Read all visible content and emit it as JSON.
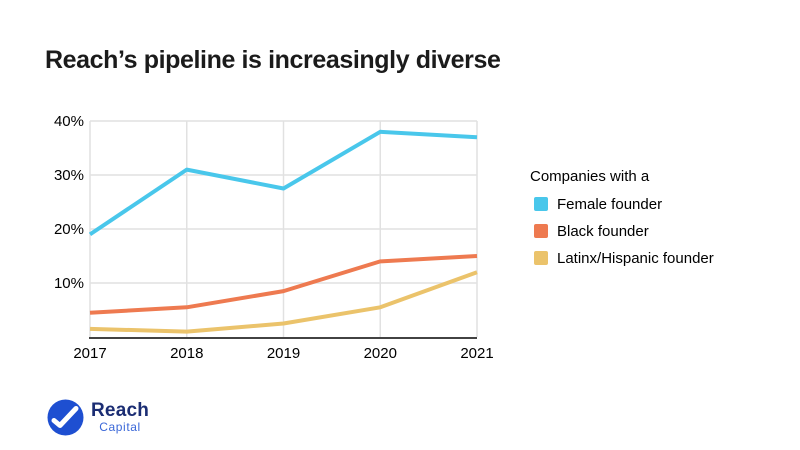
{
  "slide": {
    "title": "Reach’s pipeline is increasingly diverse"
  },
  "chart_data": {
    "type": "line",
    "title": "Reach’s pipeline is increasingly diverse",
    "categories": [
      "2017",
      "2018",
      "2019",
      "2020",
      "2021"
    ],
    "series": [
      {
        "name": "Female founder",
        "color": "#49C7EB",
        "values": [
          19,
          31,
          27.5,
          38,
          37
        ]
      },
      {
        "name": "Black founder",
        "color": "#EE7A50",
        "values": [
          4.5,
          5.5,
          8.5,
          14,
          15
        ]
      },
      {
        "name": "Latinx/Hispanic founder",
        "color": "#EBC36B",
        "values": [
          1.5,
          1,
          2.5,
          5.5,
          12
        ]
      }
    ],
    "ylabel": "",
    "xlabel": "",
    "ylim": [
      0,
      40
    ],
    "y_ticks": [
      10,
      20,
      30,
      40
    ],
    "y_tick_format": "{v}%",
    "grid": true,
    "legend_position": "right",
    "legend_title": "Companies with a"
  },
  "legend": {
    "title": "Companies with a"
  },
  "logo": {
    "name": "Reach",
    "subtitle": "Capital"
  },
  "colors": {
    "grid": "#E1E1E1",
    "axis": "#424242",
    "title_text": "#1B1B1B",
    "logo_circle": "#1E4FD1",
    "logo_name": "#1B2D73",
    "logo_subtitle": "#3A67D8"
  }
}
